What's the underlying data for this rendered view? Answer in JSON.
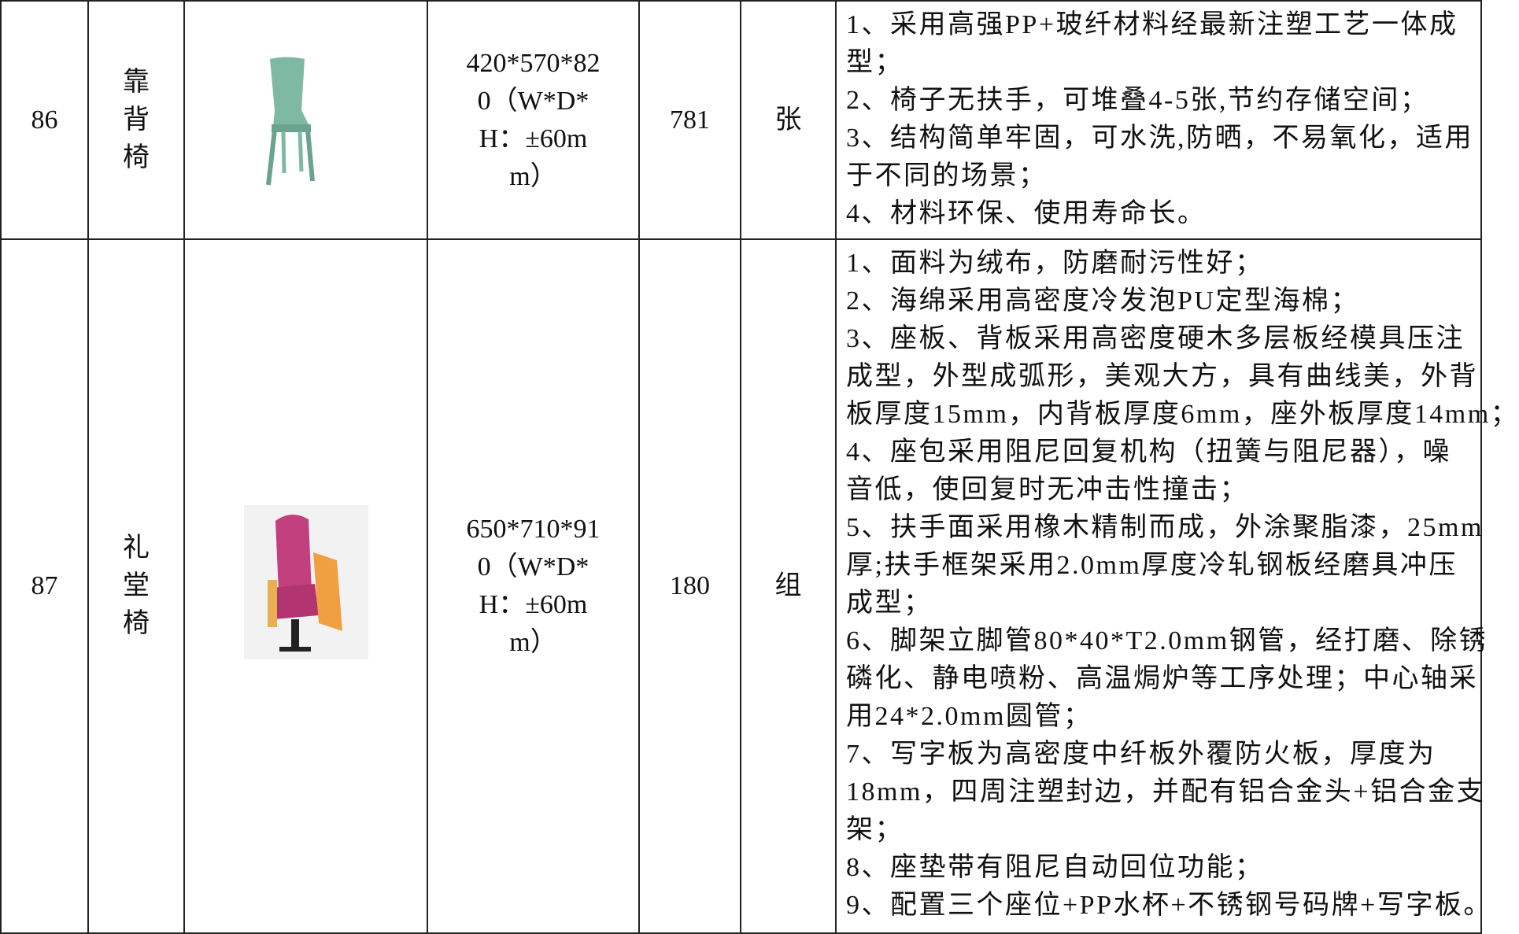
{
  "table": {
    "rows": [
      {
        "no": "86",
        "name": "靠背椅",
        "size": "420*570*820（W*D*H：±60mm）",
        "qty": "781",
        "unit": "张",
        "desc": [
          "1、采用高强PP+玻纤材料经最新注塑工艺一体成",
          "型；",
          "2、椅子无扶手，可堆叠4-5张,节约存储空间；",
          "3、结构简单牢固，可水洗,防晒，不易氧化，适用",
          "于不同的场景；",
          "4、材料环保、使用寿命长。"
        ]
      },
      {
        "no": "87",
        "name": "礼堂椅",
        "size": "650*710*910（W*D*H：±60mm）",
        "qty": "180",
        "unit": "组",
        "desc": [
          "1、面料为绒布，防磨耐污性好；",
          "2、海绵采用高密度冷发泡PU定型海棉；",
          "3、座板、背板采用高密度硬木多层板经模具压注",
          "成型，外型成弧形，美观大方，具有曲线美，外背",
          "板厚度15mm，内背板厚度6mm，座外板厚度14mm；",
          "4、座包采用阻尼回复机构（扭簧与阻尼器），噪",
          "音低，使回复时无冲击性撞击；",
          "5、扶手面采用橡木精制而成，外涂聚脂漆，25mm",
          "厚;扶手框架采用2.0mm厚度冷轧钢板经磨具冲压",
          "成型；",
          "6、脚架立脚管80*40*T2.0mm钢管，经打磨、除锈",
          "磷化、静电喷粉、高温焗炉等工序处理；中心轴采",
          "用24*2.0mm圆管；",
          "7、写字板为高密度中纤板外覆防火板，厚度为",
          "18mm，四周注塑封边，并配有铝合金头+铝合金支",
          "架；",
          "8、座垫带有阻尼自动回位功能；",
          "9、配置三个座位+PP水杯+不锈钢号码牌+写字板。"
        ]
      }
    ]
  }
}
